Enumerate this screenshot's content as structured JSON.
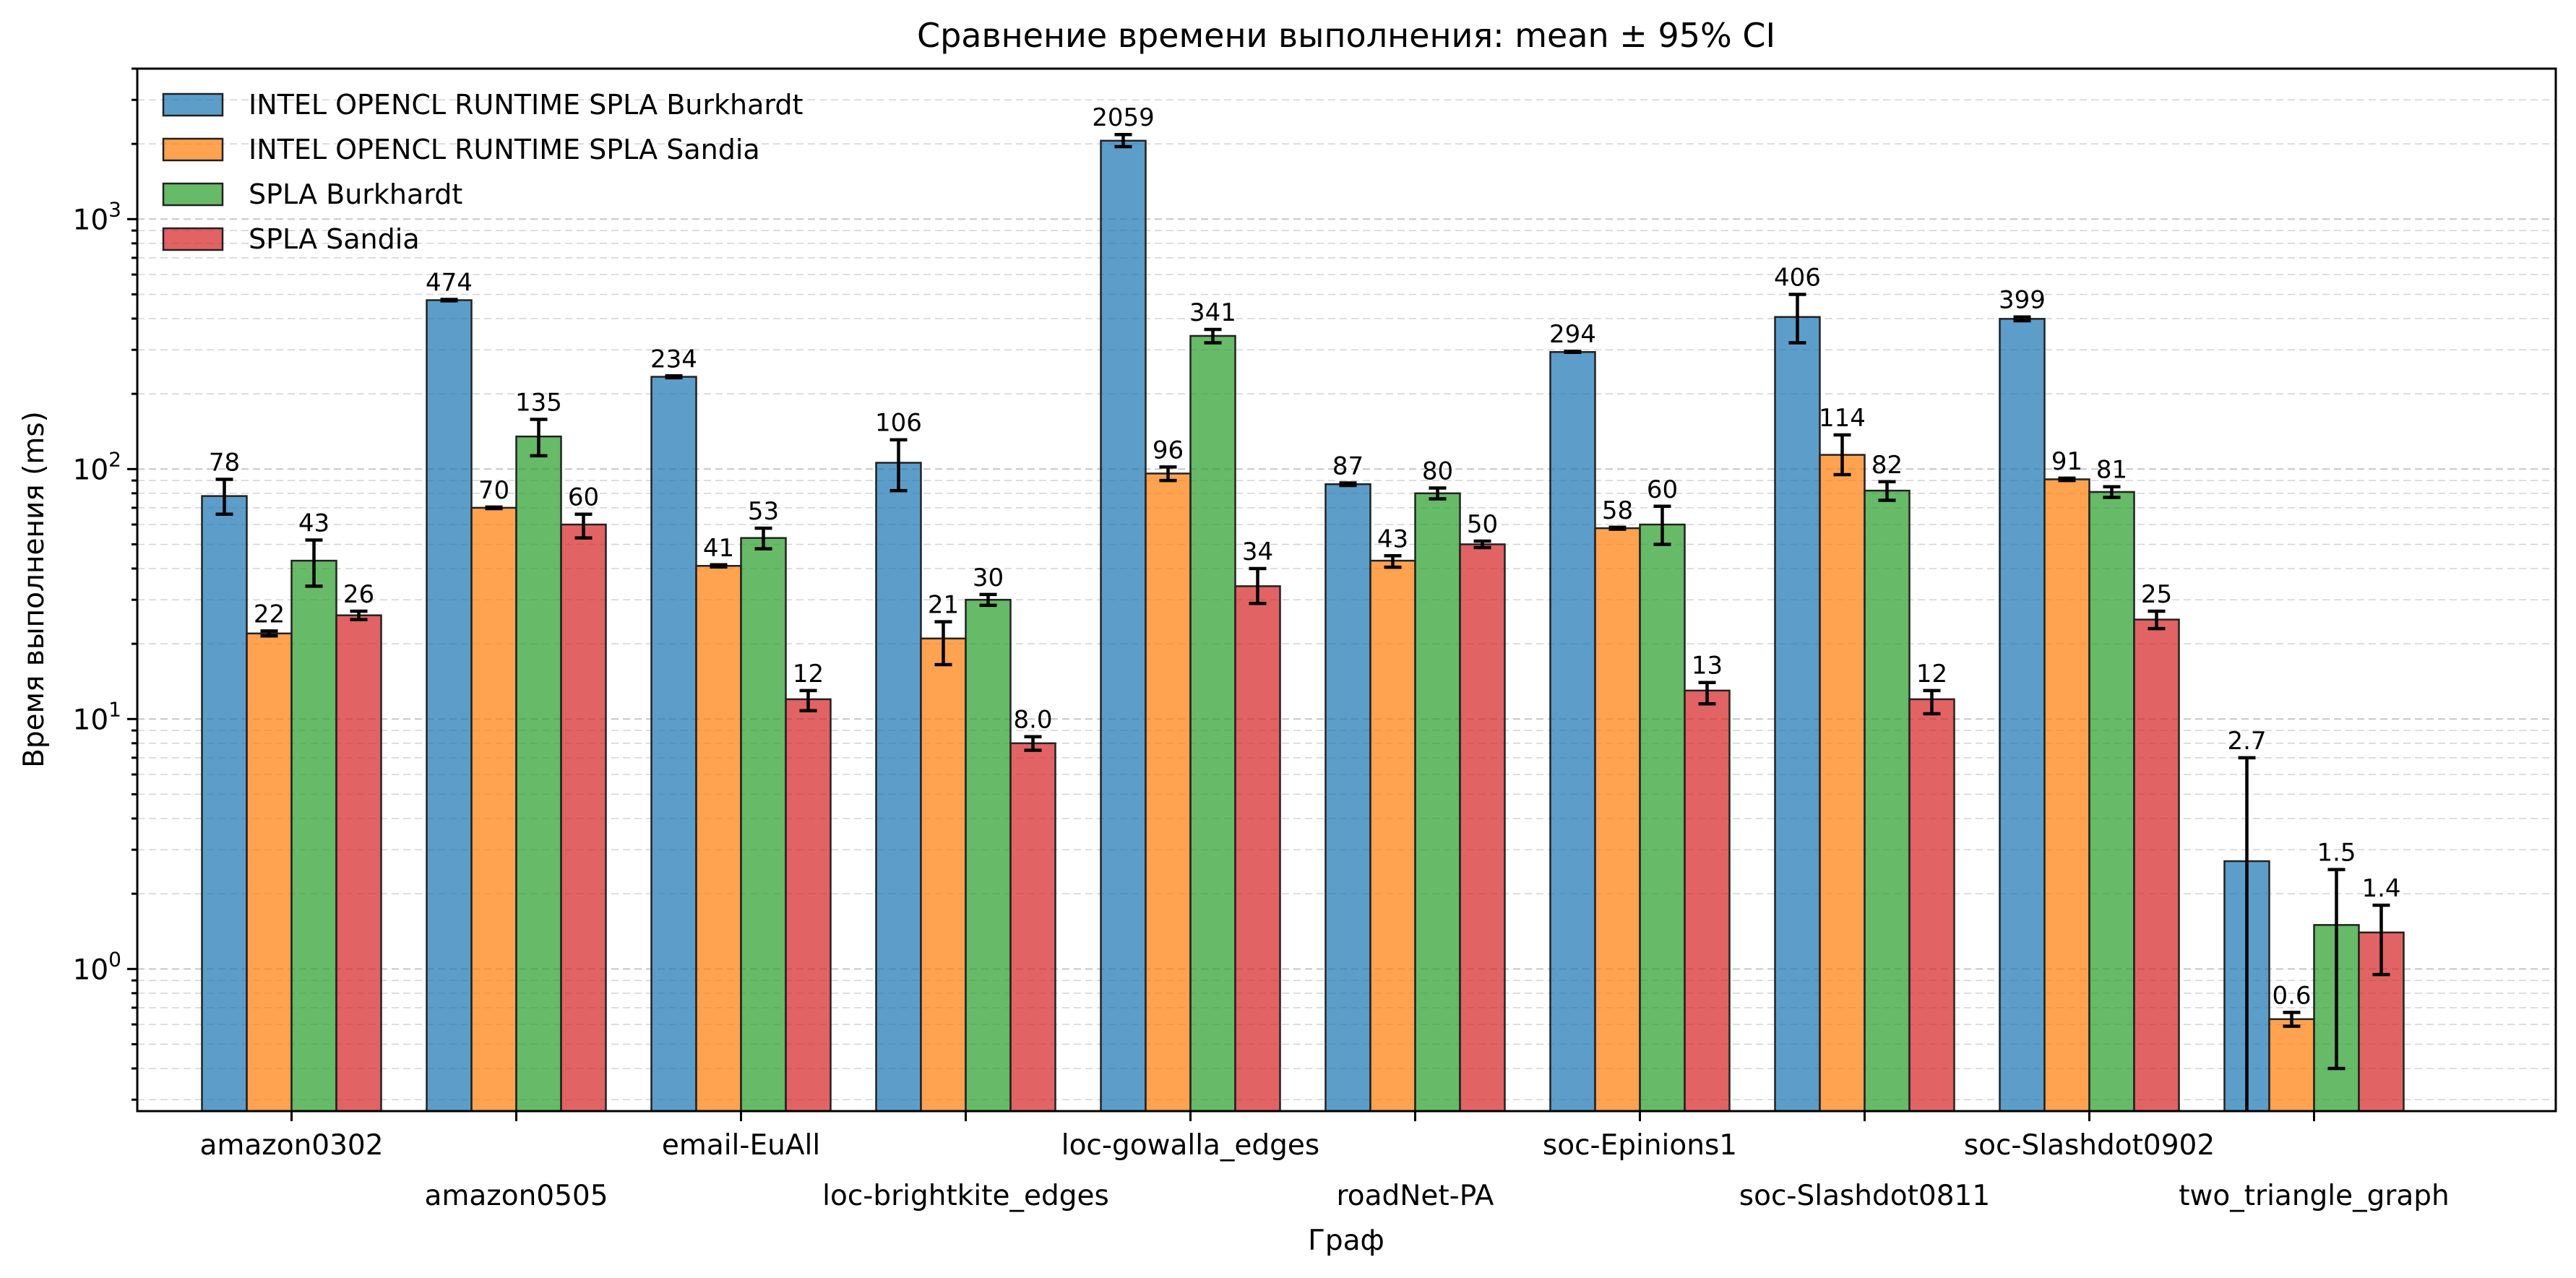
{
  "chart_data": {
    "type": "bar",
    "title": "Сравнение времени выполнения: mean ± 95% CI",
    "xlabel": "Граф",
    "ylabel": "Время выполнения (ms)",
    "yscale": "log",
    "ylim": [
      0.27,
      4000
    ],
    "y_ticks": [
      {
        "value": 1,
        "base": "10",
        "exp": "0"
      },
      {
        "value": 10,
        "base": "10",
        "exp": "1"
      },
      {
        "value": 100,
        "base": "10",
        "exp": "2"
      },
      {
        "value": 1000,
        "base": "10",
        "exp": "3"
      }
    ],
    "grid": true,
    "legend_position": "top-left",
    "categories": [
      "amazon0302",
      "amazon0505",
      "email-EuAll",
      "loc-brightkite_edges",
      "loc-gowalla_edges",
      "roadNet-PA",
      "soc-Epinions1",
      "soc-Slashdot0811",
      "soc-Slashdot0902",
      "two_triangle_graph"
    ],
    "series": [
      {
        "name": "INTEL OPENCL RUNTIME SPLA Burkhardt",
        "color": "#1f77b4",
        "values": [
          78,
          474,
          234,
          106,
          2059,
          87,
          294,
          406,
          399,
          2.7
        ],
        "labels": [
          "78",
          "474",
          "234",
          "106",
          "2059",
          "87",
          "294",
          "406",
          "399",
          "2.7"
        ],
        "ci_low": [
          66,
          471,
          232,
          82,
          1950,
          86,
          293,
          320,
          392,
          0.27
        ],
        "ci_high": [
          91,
          477,
          236,
          131,
          2180,
          88,
          296,
          500,
          406,
          7.0
        ]
      },
      {
        "name": "INTEL OPENCL RUNTIME SPLA Sandia",
        "color": "#ff7f0e",
        "values": [
          22,
          70,
          41,
          21,
          96,
          43,
          58,
          114,
          91,
          0.63
        ],
        "labels": [
          "22",
          "70",
          "41",
          "21",
          "96",
          "43",
          "58",
          "114",
          "91",
          "0.6"
        ],
        "ci_low": [
          21.5,
          69.5,
          40.6,
          16.5,
          90,
          40.5,
          57.5,
          95,
          90,
          0.59
        ],
        "ci_high": [
          22.5,
          70.5,
          41.4,
          24.5,
          102,
          45,
          58.5,
          137,
          92,
          0.67
        ]
      },
      {
        "name": "SPLA Burkhardt",
        "color": "#2ca02c",
        "values": [
          43,
          135,
          53,
          30,
          341,
          80,
          60,
          82,
          81,
          1.5
        ],
        "labels": [
          "43",
          "135",
          "53",
          "30",
          "341",
          "80",
          "60",
          "82",
          "81",
          "1.5"
        ],
        "ci_low": [
          34,
          113,
          48,
          28.5,
          320,
          76,
          50,
          75,
          77,
          0.4
        ],
        "ci_high": [
          52,
          158,
          58,
          31.5,
          362,
          84,
          71,
          89,
          85,
          2.5
        ]
      },
      {
        "name": "SPLA Sandia",
        "color": "#d62728",
        "values": [
          26,
          60,
          12,
          8.0,
          34,
          50,
          13,
          12,
          25,
          1.4
        ],
        "labels": [
          "26",
          "60",
          "12",
          "8.0",
          "34",
          "50",
          "13",
          "12",
          "25",
          "1.4"
        ],
        "ci_low": [
          25,
          53,
          10.8,
          7.5,
          29,
          48.5,
          11.5,
          10.5,
          23,
          0.95
        ],
        "ci_high": [
          27,
          66,
          13,
          8.5,
          40,
          51.5,
          14,
          13,
          27,
          1.8
        ]
      }
    ]
  }
}
